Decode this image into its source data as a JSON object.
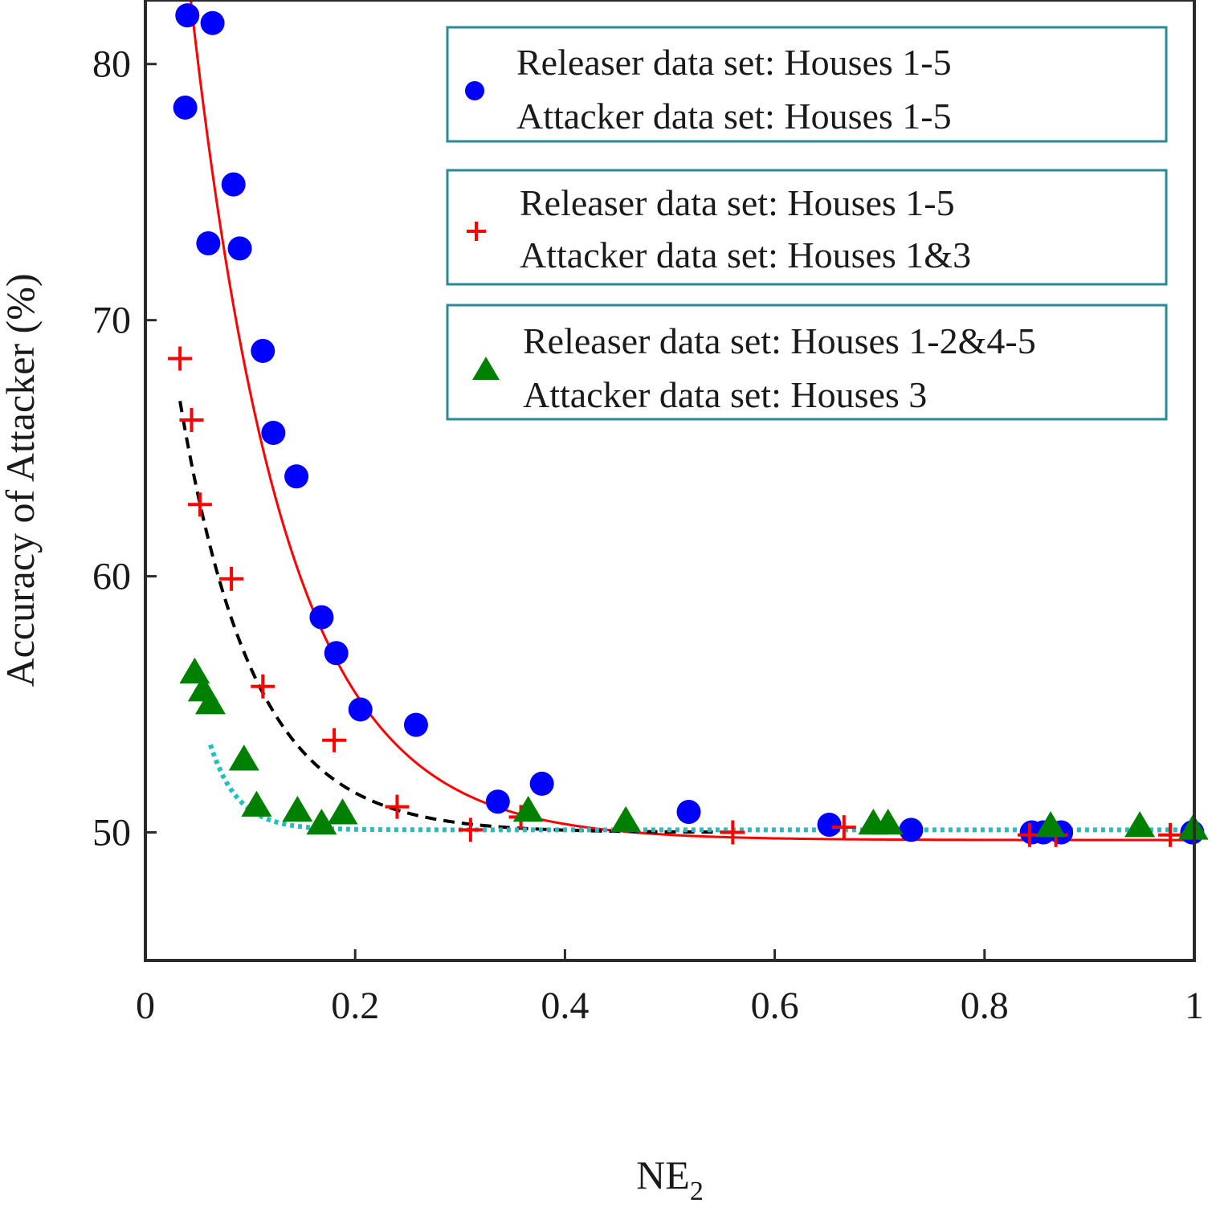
{
  "chart_data": {
    "type": "scatter",
    "xlabel": "NE",
    "xlabel_subscript": "2",
    "ylabel": "Accuracy of Attacker (%)",
    "xlim": [
      0,
      1
    ],
    "ylim": [
      45,
      82.5
    ],
    "x_ticks": [
      0,
      0.2,
      0.4,
      0.6,
      0.8,
      1
    ],
    "x_tick_labels": [
      "0",
      "0.2",
      "0.4",
      "0.6",
      "0.8",
      "1"
    ],
    "y_ticks": [
      50,
      60,
      70,
      80
    ],
    "y_tick_labels": [
      "50",
      "60",
      "70",
      "80"
    ],
    "grid": false,
    "legend_position": "top-right",
    "series": [
      {
        "legend": [
          "Releaser data set: Houses 1-5",
          "Attacker data set: Houses 1-5"
        ],
        "marker": "circle",
        "color": "#0000ff",
        "points": [
          [
            0.04,
            81.9
          ],
          [
            0.064,
            81.6
          ],
          [
            0.038,
            78.3
          ],
          [
            0.084,
            75.3
          ],
          [
            0.06,
            73.0
          ],
          [
            0.09,
            72.8
          ],
          [
            0.112,
            68.8
          ],
          [
            0.122,
            65.6
          ],
          [
            0.144,
            63.9
          ],
          [
            0.168,
            58.4
          ],
          [
            0.182,
            57.0
          ],
          [
            0.205,
            54.8
          ],
          [
            0.258,
            54.2
          ],
          [
            0.336,
            51.2
          ],
          [
            0.378,
            51.9
          ],
          [
            0.518,
            50.8
          ],
          [
            0.652,
            50.3
          ],
          [
            0.73,
            50.1
          ],
          [
            0.845,
            50.0
          ],
          [
            0.856,
            50.0
          ],
          [
            0.873,
            50.0
          ],
          [
            0.998,
            50.0
          ]
        ],
        "fit": {
          "color": "#ff0000",
          "style": "solid",
          "x_range": [
            0.04,
            1.0
          ],
          "a": 49.7,
          "b": 53.0,
          "c": 11.1
        }
      },
      {
        "legend": [
          "Releaser data set: Houses 1-5",
          "Attacker data set: Houses 1&3"
        ],
        "marker": "plus",
        "color": "#ff0000",
        "points": [
          [
            0.033,
            68.5
          ],
          [
            0.044,
            66.1
          ],
          [
            0.052,
            62.8
          ],
          [
            0.082,
            59.9
          ],
          [
            0.112,
            55.7
          ],
          [
            0.18,
            53.6
          ],
          [
            0.24,
            51.0
          ],
          [
            0.31,
            50.1
          ],
          [
            0.358,
            50.6
          ],
          [
            0.56,
            50.0
          ],
          [
            0.666,
            50.2
          ],
          [
            0.843,
            49.9
          ],
          [
            0.868,
            49.9
          ],
          [
            0.977,
            49.9
          ]
        ],
        "fit": {
          "color": "#000000",
          "style": "dashed",
          "x_range": [
            0.033,
            0.56
          ],
          "a": 50.0,
          "b": 27.0,
          "c": 14.3
        }
      },
      {
        "legend": [
          "Releaser data set: Houses 1-2&4-5",
          "Attacker data set: Houses 3"
        ],
        "marker": "triangle",
        "color": "#008000",
        "points": [
          [
            0.047,
            56.2
          ],
          [
            0.055,
            55.5
          ],
          [
            0.062,
            55.0
          ],
          [
            0.094,
            52.8
          ],
          [
            0.106,
            51.0
          ],
          [
            0.145,
            50.8
          ],
          [
            0.168,
            50.3
          ],
          [
            0.188,
            50.7
          ],
          [
            0.365,
            50.8
          ],
          [
            0.458,
            50.4
          ],
          [
            0.694,
            50.3
          ],
          [
            0.708,
            50.3
          ],
          [
            0.863,
            50.2
          ],
          [
            0.948,
            50.2
          ],
          [
            0.999,
            50.1
          ]
        ],
        "fit": {
          "color": "#20c0c0",
          "style": "dotted",
          "x_range": [
            0.062,
            1.0
          ],
          "a": 50.1,
          "b": 35.0,
          "c": 38.0
        }
      }
    ]
  }
}
